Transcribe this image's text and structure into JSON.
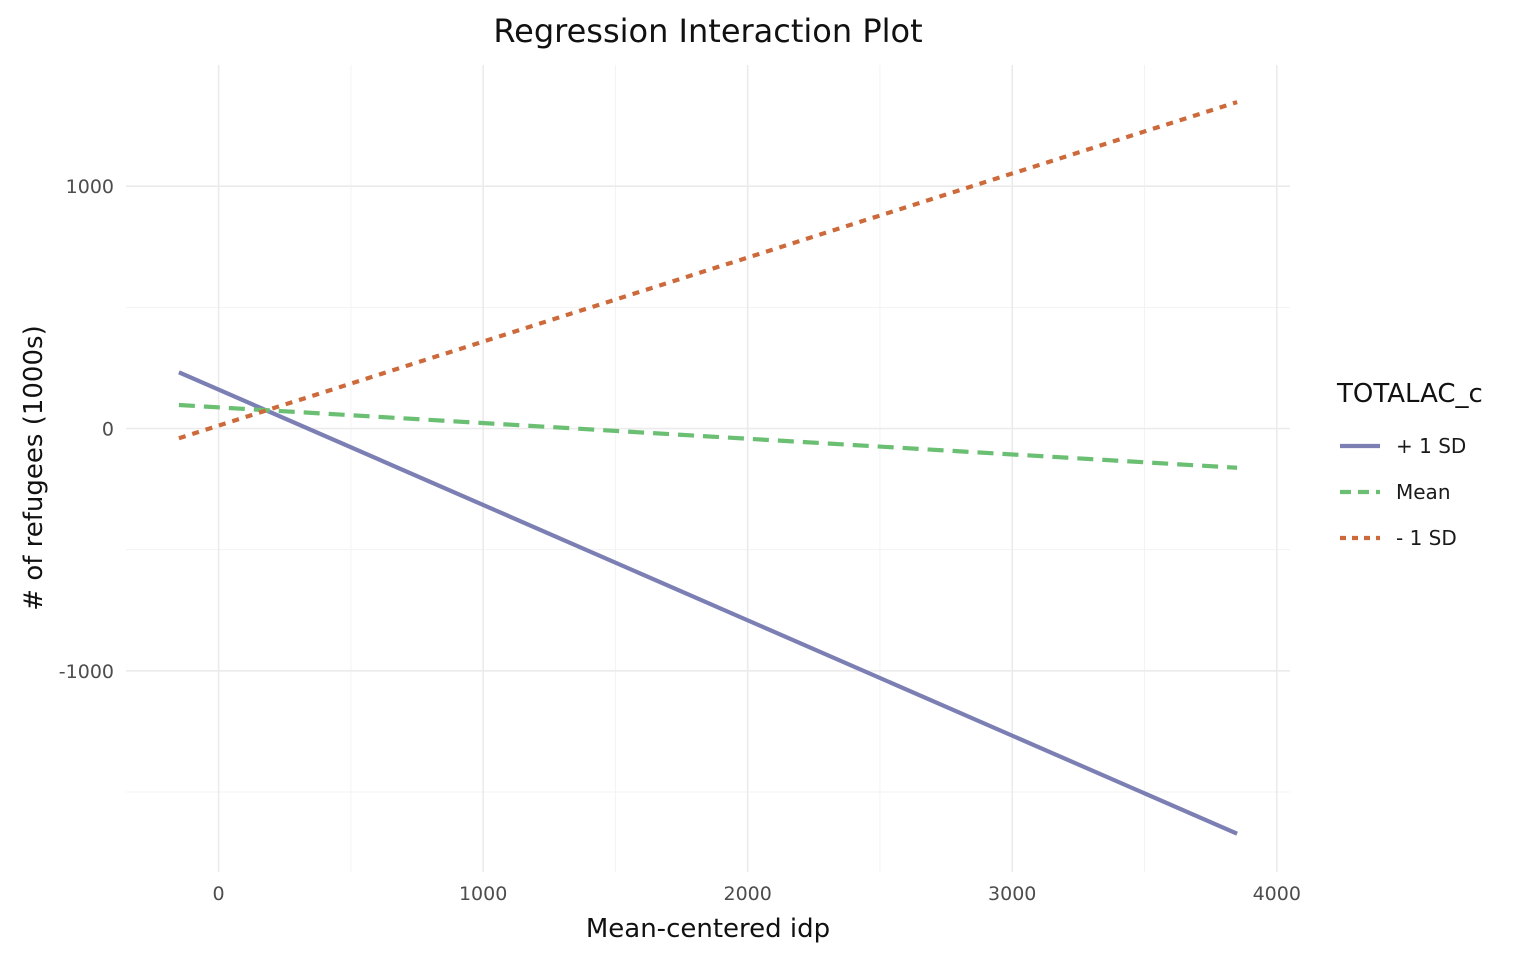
{
  "chart_data": {
    "type": "line",
    "title": "Regression Interaction Plot",
    "xlabel": "Mean-centered idp",
    "ylabel": "# of refugees (1000s)",
    "xlim": [
      -350,
      4050
    ],
    "ylim": [
      -1830,
      1500
    ],
    "x_ticks": [
      0,
      1000,
      2000,
      3000,
      4000
    ],
    "x_tick_labels": [
      "0",
      "1000",
      "2000",
      "3000",
      "4000"
    ],
    "y_ticks": [
      -1000,
      0,
      1000
    ],
    "y_tick_labels": [
      "-1000",
      "0",
      "1000"
    ],
    "x_minor_ticks": [
      500,
      1500,
      2500,
      3500
    ],
    "y_minor_ticks": [
      -1500,
      -500,
      500
    ],
    "grid": true,
    "legend": {
      "title": "TOTALAC_c",
      "position": "right"
    },
    "series": [
      {
        "name": "+ 1 SD",
        "x": [
          -150,
          3850
        ],
        "y": [
          232,
          -1672
        ],
        "color": "#7b7fb3",
        "dash": "solid"
      },
      {
        "name": "Mean",
        "x": [
          -150,
          3850
        ],
        "y": [
          97,
          -162
        ],
        "color": "#6bbf73",
        "dash": "dashed"
      },
      {
        "name": "- 1 SD",
        "x": [
          -150,
          3850
        ],
        "y": [
          -40,
          1347
        ],
        "color": "#cd6a3b",
        "dash": "dotted"
      }
    ]
  }
}
